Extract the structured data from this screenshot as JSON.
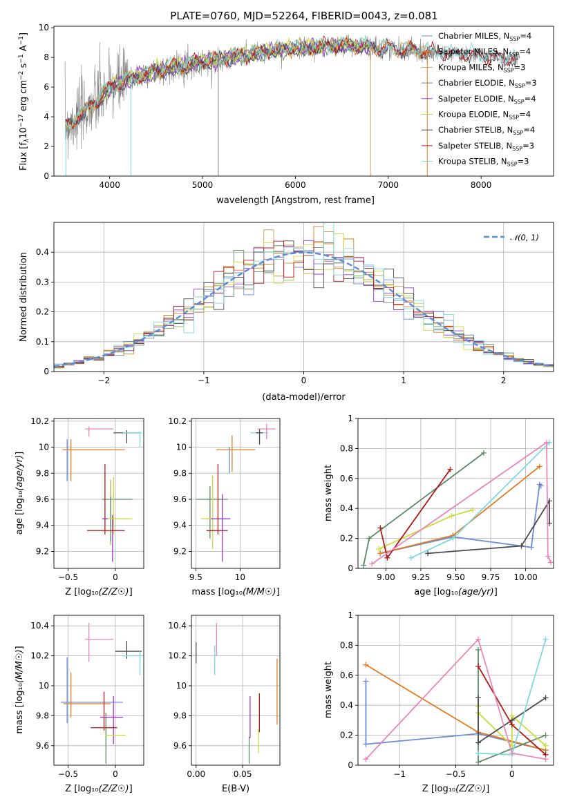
{
  "title": "PLATE=0760, MJD=52264, FIBERID=0043, z=0.081",
  "colors": {
    "Chabrier MILES": "#6a8bd8",
    "Salpeter MILES": "#e07b1f",
    "Kroupa MILES": "#bfa050",
    "Chabrier ELODIE": "#5a8a64",
    "Salpeter ELODIE": "#9b37c8",
    "Kroupa ELODIE": "#c8dc3c",
    "Chabrier STELIB": "#4a4a4a",
    "Salpeter STELIB": "#b01818",
    "Kroupa STELIB": "#7ed8e0"
  },
  "chart_data": [
    {
      "id": "spectrum",
      "type": "line",
      "title": "PLATE=0760, MJD=52264, FIBERID=0043, z=0.081",
      "xlabel": "wavelength [Angstrom, rest frame]",
      "ylabel": "Flux [f",
      "xlim": [
        3400,
        8780
      ],
      "ylim": [
        0,
        10.1
      ],
      "xticks": [
        4000,
        5000,
        6000,
        7000,
        8000
      ],
      "yticks": [
        0,
        2,
        4,
        6,
        8,
        10
      ],
      "grid": false,
      "legend_position": "top-right",
      "data_color": "#808080",
      "legend": [
        {
          "name": "Chabrier MILES",
          "n": "4"
        },
        {
          "name": "Salpeter MILES",
          "n": "4"
        },
        {
          "name": "Kroupa MILES",
          "n": "3"
        },
        {
          "name": "Chabrier ELODIE",
          "n": "3"
        },
        {
          "name": "Salpeter ELODIE",
          "n": "4"
        },
        {
          "name": "Kroupa ELODIE",
          "n": "4"
        },
        {
          "name": "Chabrier STELIB",
          "n": "4"
        },
        {
          "name": "Salpeter STELIB",
          "n": "3"
        },
        {
          "name": "Kroupa STELIB",
          "n": "3"
        }
      ],
      "continuum": {
        "x": [
          3520,
          3700,
          3900,
          4000,
          4200,
          4400,
          4600,
          4800,
          5000,
          5200,
          5400,
          5600,
          5800,
          6000,
          6200,
          6400,
          6600,
          6800,
          7000,
          7200,
          7400,
          7600,
          7800,
          8000,
          8200,
          8400
        ],
        "y": [
          3.3,
          4.2,
          5.3,
          5.9,
          6.5,
          6.9,
          7.2,
          7.5,
          7.7,
          7.9,
          8.1,
          8.3,
          8.5,
          8.6,
          8.7,
          8.8,
          8.8,
          8.7,
          8.6,
          8.5,
          8.4,
          8.3,
          8.2,
          8.1,
          8.0,
          7.9
        ]
      },
      "model_ranges": {
        "Chabrier MILES": [
          3525,
          7420
        ],
        "Salpeter MILES": [
          3525,
          7420
        ],
        "Kroupa MILES": [
          3525,
          7420
        ],
        "Chabrier ELODIE": [
          3900,
          6800
        ],
        "Salpeter ELODIE": [
          3900,
          6800
        ],
        "Kroupa ELODIE": [
          3900,
          6800
        ],
        "Chabrier STELIB": [
          3525,
          8400
        ],
        "Salpeter STELIB": [
          3525,
          8400
        ],
        "Kroupa STELIB": [
          3525,
          8400
        ]
      }
    },
    {
      "id": "residuals",
      "type": "histogram",
      "xlabel": "(data-model)/error",
      "ylabel": "Normed distribution",
      "xlim": [
        -2.5,
        2.5
      ],
      "ylim": [
        0,
        0.5
      ],
      "xticks": [
        -2,
        -1,
        0,
        1,
        2
      ],
      "yticks": [
        0.0,
        0.1,
        0.2,
        0.3,
        0.4
      ],
      "grid": true,
      "legend_position": "top-right",
      "reference_curve": {
        "name": "𝒩(0, 1)",
        "color": "#5b8ad6",
        "mean": 0,
        "sigma": 1
      },
      "bin_edges": [
        -2.5,
        2.5
      ],
      "bins": 50
    },
    {
      "id": "age-vs-Z",
      "type": "errorbar",
      "xlabel": "Z [log₁₀(Z/Z☉)]",
      "ylabel": "age  [log₁₀(age/yr)]",
      "xlim": [
        -0.65,
        0.3
      ],
      "ylim": [
        9.07,
        10.22
      ],
      "xticks": [
        -0.5,
        0.0
      ],
      "yticks": [
        9.2,
        9.4,
        9.6,
        9.8,
        10.0,
        10.2
      ],
      "grid": true,
      "points": [
        {
          "model": "Chabrier MILES",
          "x": -0.51,
          "xerr": 0.0,
          "y": 9.9,
          "yerr": 0.16
        },
        {
          "model": "Salpeter MILES",
          "x": -0.23,
          "xerr": 0.33,
          "y": 9.98,
          "yerr": 0.0
        },
        {
          "model": "Salpeter MILES",
          "x": -0.47,
          "xerr": 0.0,
          "y": 9.9,
          "yerr": 0.16
        },
        {
          "model": "Kroupa MILES",
          "x": -0.05,
          "xerr": 0.0,
          "y": 9.5,
          "yerr": 0.25
        },
        {
          "model": "Chabrier ELODIE",
          "x": 0.02,
          "xerr": 0.16,
          "y": 9.6,
          "yerr": 0.0
        },
        {
          "model": "Chabrier ELODIE",
          "x": -0.05,
          "xerr": 0.0,
          "y": 9.45,
          "yerr": 0.17
        },
        {
          "model": "Salpeter ELODIE",
          "x": -0.06,
          "xerr": 0.08,
          "y": 9.45,
          "yerr": 0.0
        },
        {
          "model": "Salpeter ELODIE",
          "x": -0.03,
          "xerr": 0.0,
          "y": 9.3,
          "yerr": 0.18
        },
        {
          "model": "Kroupa ELODIE",
          "x": 0.05,
          "xerr": 0.13,
          "y": 9.45,
          "yerr": 0.0
        },
        {
          "model": "Kroupa ELODIE",
          "x": -0.02,
          "xerr": 0.0,
          "y": 9.55,
          "yerr": 0.22
        },
        {
          "model": "Chabrier STELIB",
          "x": 0.12,
          "xerr": 0.14,
          "y": 10.11,
          "yerr": 0.0
        },
        {
          "model": "Chabrier STELIB",
          "x": 0.12,
          "xerr": 0.0,
          "y": 10.08,
          "yerr": 0.05
        },
        {
          "model": "Salpeter STELIB",
          "x": -0.11,
          "xerr": 0.0,
          "y": 9.6,
          "yerr": 0.27
        },
        {
          "model": "Salpeter STELIB",
          "x": -0.1,
          "xerr": 0.2,
          "y": 9.36,
          "yerr": 0.0
        },
        {
          "model": "Kroupa STELIB",
          "x": 0.18,
          "xerr": 0.1,
          "y": 10.11,
          "yerr": 0.0
        },
        {
          "model": "Kroupa STELIB",
          "x": 0.26,
          "xerr": 0.0,
          "y": 10.06,
          "yerr": 0.06
        },
        {
          "model": "Chabrier MILES",
          "x": -0.17,
          "xerr": 0.15,
          "y": 10.14,
          "yerr": 0.0,
          "color": "#e887b8"
        },
        {
          "model": "Chabrier MILES",
          "x": -0.28,
          "xerr": 0.0,
          "y": 10.12,
          "yerr": 0.04,
          "color": "#e887b8"
        }
      ]
    },
    {
      "id": "age-vs-mass",
      "type": "errorbar",
      "xlabel": "mass [log₁₀(M/M☉)]",
      "ylabel": "",
      "xlim": [
        9.45,
        10.45
      ],
      "ylim": [
        9.07,
        10.22
      ],
      "xticks": [
        9.5,
        10.0
      ],
      "yticks": [
        9.2,
        9.4,
        9.6,
        9.8,
        10.0,
        10.2
      ],
      "grid": true,
      "points": [
        {
          "model": "Salpeter MILES",
          "x": 9.95,
          "xerr": 0.22,
          "y": 9.98,
          "yerr": 0.0
        },
        {
          "model": "Salpeter MILES",
          "x": 9.91,
          "xerr": 0.0,
          "y": 9.95,
          "yerr": 0.14
        },
        {
          "model": "Chabrier MILES",
          "x": 9.88,
          "xerr": 0.0,
          "y": 9.9,
          "yerr": 0.1
        },
        {
          "model": "Chabrier ELODIE",
          "x": 9.68,
          "xerr": 0.18,
          "y": 9.6,
          "yerr": 0.0
        },
        {
          "model": "Chabrier ELODIE",
          "x": 9.66,
          "xerr": 0.0,
          "y": 9.5,
          "yerr": 0.2
        },
        {
          "model": "Kroupa ELODIE",
          "x": 9.68,
          "xerr": 0.12,
          "y": 9.45,
          "yerr": 0.0
        },
        {
          "model": "Kroupa ELODIE",
          "x": 9.69,
          "xerr": 0.0,
          "y": 9.5,
          "yerr": 0.28
        },
        {
          "model": "Salpeter ELODIE",
          "x": 9.78,
          "xerr": 0.11,
          "y": 9.45,
          "yerr": 0.0
        },
        {
          "model": "Salpeter ELODIE",
          "x": 9.8,
          "xerr": 0.0,
          "y": 9.38,
          "yerr": 0.26
        },
        {
          "model": "Salpeter STELIB",
          "x": 9.75,
          "xerr": 0.0,
          "y": 9.6,
          "yerr": 0.27
        },
        {
          "model": "Salpeter STELIB",
          "x": 9.74,
          "xerr": 0.12,
          "y": 9.36,
          "yerr": 0.0
        },
        {
          "model": "Kroupa STELIB",
          "x": 10.22,
          "xerr": 0.1,
          "y": 10.11,
          "yerr": 0.0
        },
        {
          "model": "Chabrier STELIB",
          "x": 10.22,
          "xerr": 0.04,
          "y": 10.11,
          "yerr": 0.0
        },
        {
          "model": "Chabrier STELIB",
          "x": 10.22,
          "xerr": 0.0,
          "y": 10.08,
          "yerr": 0.06
        },
        {
          "model": "Chabrier MILES",
          "x": 10.3,
          "xerr": 0.1,
          "y": 10.14,
          "yerr": 0.0,
          "color": "#e887b8"
        },
        {
          "model": "Chabrier MILES",
          "x": 10.3,
          "xerr": 0.0,
          "y": 10.12,
          "yerr": 0.06,
          "color": "#e887b8"
        }
      ]
    },
    {
      "id": "weight-vs-age",
      "type": "line",
      "xlabel": "age  [log₁₀(age/yr)]",
      "ylabel": "mass weight",
      "xlim": [
        8.8,
        10.2
      ],
      "ylim": [
        0,
        1.0
      ],
      "xticks": [
        9.0,
        9.25,
        9.5,
        9.75,
        10.0
      ],
      "xticklabels": [
        "9.00",
        "9.25",
        "9.50",
        "9.75",
        "10.00"
      ],
      "yticks": [
        0.0,
        0.2,
        0.4,
        0.6,
        0.8,
        1.0
      ],
      "grid": true,
      "series": [
        {
          "model": "Chabrier MILES",
          "x": [
            8.96,
            9.48,
            10.04,
            10.1,
            10.11
          ],
          "y": [
            0.1,
            0.21,
            0.14,
            0.56,
            0.55
          ]
        },
        {
          "model": "Salpeter MILES",
          "x": [
            8.96,
            9.48,
            10.1
          ],
          "y": [
            0.1,
            0.22,
            0.68
          ]
        },
        {
          "model": "Chabrier ELODIE",
          "x": [
            8.84,
            8.88,
            9.7
          ],
          "y": [
            0.02,
            0.2,
            0.77
          ]
        },
        {
          "model": "Kroupa ELODIE",
          "x": [
            8.95,
            9.47,
            9.62
          ],
          "y": [
            0.13,
            0.35,
            0.39
          ]
        },
        {
          "model": "Chabrier STELIB",
          "x": [
            9.3,
            9.97,
            10.17,
            10.17
          ],
          "y": [
            0.1,
            0.15,
            0.45,
            0.3
          ]
        },
        {
          "model": "Salpeter STELIB",
          "x": [
            8.96,
            9.01,
            9.46
          ],
          "y": [
            0.27,
            0.07,
            0.66
          ]
        },
        {
          "model": "Kroupa STELIB",
          "x": [
            9.18,
            9.48,
            10.17
          ],
          "y": [
            0.07,
            0.2,
            0.84
          ]
        },
        {
          "model": "Chabrier MILES",
          "x": [
            8.9,
            10.15,
            10.16,
            10.18
          ],
          "y": [
            0.03,
            0.84,
            0.08,
            0.04
          ],
          "color": "#e887b8"
        }
      ]
    },
    {
      "id": "mass-vs-Z",
      "type": "errorbar",
      "xlabel": "Z [log₁₀(Z/Z☉)]",
      "ylabel": "mass [log₁₀(M/M☉)]",
      "xlim": [
        -0.65,
        0.3
      ],
      "ylim": [
        9.47,
        10.47
      ],
      "xticks": [
        -0.5,
        0.0
      ],
      "yticks": [
        9.6,
        9.8,
        10.0,
        10.2,
        10.4
      ],
      "grid": true,
      "points": [
        {
          "model": "Chabrier MILES",
          "x": -0.25,
          "xerr": 0.33,
          "y": 9.89,
          "yerr": 0.0
        },
        {
          "model": "Chabrier MILES",
          "x": -0.51,
          "xerr": 0.0,
          "y": 9.97,
          "yerr": 0.22
        },
        {
          "model": "Salpeter MILES",
          "x": -0.3,
          "xerr": 0.25,
          "y": 9.88,
          "yerr": 0.0
        },
        {
          "model": "Salpeter MILES",
          "x": -0.47,
          "xerr": 0.0,
          "y": 9.94,
          "yerr": 0.15
        },
        {
          "model": "Chabrier ELODIE",
          "x": -0.1,
          "xerr": 0.0,
          "y": 9.65,
          "yerr": 0.17
        },
        {
          "model": "Salpeter ELODIE",
          "x": -0.04,
          "xerr": 0.12,
          "y": 9.79,
          "yerr": 0.0
        },
        {
          "model": "Salpeter ELODIE",
          "x": -0.02,
          "xerr": 0.0,
          "y": 9.77,
          "yerr": 0.16
        },
        {
          "model": "Kroupa ELODIE",
          "x": 0.0,
          "xerr": 0.11,
          "y": 9.67,
          "yerr": 0.0
        },
        {
          "model": "Salpeter STELIB",
          "x": -0.12,
          "xerr": 0.0,
          "y": 9.83,
          "yerr": 0.13
        },
        {
          "model": "Salpeter STELIB",
          "x": -0.12,
          "xerr": 0.14,
          "y": 9.72,
          "yerr": 0.0
        },
        {
          "model": "Chabrier STELIB",
          "x": 0.14,
          "xerr": 0.14,
          "y": 10.23,
          "yerr": 0.0
        },
        {
          "model": "Chabrier STELIB",
          "x": 0.12,
          "xerr": 0.0,
          "y": 10.24,
          "yerr": 0.06
        },
        {
          "model": "Kroupa STELIB",
          "x": 0.18,
          "xerr": 0.1,
          "y": 10.2,
          "yerr": 0.0
        },
        {
          "model": "Kroupa STELIB",
          "x": 0.26,
          "xerr": 0.0,
          "y": 10.15,
          "yerr": 0.08
        },
        {
          "model": "Chabrier MILES",
          "x": -0.17,
          "xerr": 0.15,
          "y": 10.31,
          "yerr": 0.0,
          "color": "#e887b8"
        },
        {
          "model": "Chabrier MILES",
          "x": -0.28,
          "xerr": 0.0,
          "y": 10.29,
          "yerr": 0.13,
          "color": "#e887b8"
        }
      ]
    },
    {
      "id": "mass-vs-EBV",
      "type": "errorbar",
      "xlabel": "E(B-V)",
      "ylabel": "",
      "xlim": [
        -0.005,
        0.09
      ],
      "ylim": [
        9.47,
        10.47
      ],
      "xticks": [
        0.0,
        0.05
      ],
      "xticklabels": [
        "0.00",
        "0.05"
      ],
      "yticks": [
        9.6,
        9.8,
        10.0,
        10.2,
        10.4
      ],
      "grid": true,
      "points": [
        {
          "model": "Chabrier STELIB",
          "x": 0.0,
          "xerr": 0.0,
          "y": 10.22,
          "yerr": 0.07
        },
        {
          "model": "Kroupa STELIB",
          "x": 0.02,
          "xerr": 0.0,
          "y": 10.17,
          "yerr": 0.1
        },
        {
          "model": "Chabrier MILES",
          "x": 0.022,
          "xerr": 0.0,
          "y": 10.31,
          "yerr": 0.11,
          "color": "#e887b8"
        },
        {
          "model": "Salpeter ELODIE",
          "x": 0.058,
          "xerr": 0.0,
          "y": 9.79,
          "yerr": 0.14
        },
        {
          "model": "Chabrier ELODIE",
          "x": 0.057,
          "xerr": 0.0,
          "y": 9.57,
          "yerr": 0.09
        },
        {
          "model": "Salpeter STELIB",
          "x": 0.068,
          "xerr": 0.0,
          "y": 9.82,
          "yerr": 0.13
        },
        {
          "model": "Kroupa ELODIE",
          "x": 0.067,
          "xerr": 0.0,
          "y": 9.63,
          "yerr": 0.08
        },
        {
          "model": "Salpeter MILES",
          "x": 0.087,
          "xerr": 0.0,
          "y": 9.96,
          "yerr": 0.22
        }
      ]
    },
    {
      "id": "weight-vs-Z",
      "type": "line",
      "xlabel": "Z [log₁₀(Z/Z☉)]",
      "ylabel": "mass weight",
      "xlim": [
        -1.37,
        0.37
      ],
      "ylim": [
        0,
        1.0
      ],
      "xticks": [
        -1.0,
        -0.5,
        0.0
      ],
      "yticks": [
        0.0,
        0.2,
        0.4,
        0.6,
        0.8,
        1.0
      ],
      "grid": true,
      "series": [
        {
          "model": "Chabrier MILES",
          "x": [
            -1.3,
            -1.3,
            -0.3,
            0.3
          ],
          "y": [
            0.56,
            0.14,
            0.21,
            0.1
          ]
        },
        {
          "model": "Salpeter MILES",
          "x": [
            -1.3,
            -0.3,
            0.3
          ],
          "y": [
            0.67,
            0.22,
            0.1
          ]
        },
        {
          "model": "Chabrier ELODIE",
          "x": [
            -0.3,
            -0.3,
            0.3
          ],
          "y": [
            0.77,
            0.02,
            0.2
          ]
        },
        {
          "model": "Kroupa ELODIE",
          "x": [
            -0.3,
            -0.3,
            0.0,
            0.0,
            0.3
          ],
          "y": [
            0.39,
            0.35,
            0.13,
            0.33,
            0.13
          ]
        },
        {
          "model": "Chabrier STELIB",
          "x": [
            -0.3,
            -0.3,
            0.0,
            0.3
          ],
          "y": [
            0.45,
            0.15,
            0.3,
            0.45
          ]
        },
        {
          "model": "Salpeter STELIB",
          "x": [
            -0.3,
            0.0,
            0.3
          ],
          "y": [
            0.66,
            0.27,
            0.07
          ]
        },
        {
          "model": "Kroupa STELIB",
          "x": [
            -0.3,
            0.0,
            0.3
          ],
          "y": [
            0.08,
            0.07,
            0.84
          ]
        },
        {
          "model": "Chabrier MILES",
          "x": [
            -1.3,
            -0.3,
            0.0,
            0.3
          ],
          "y": [
            0.04,
            0.84,
            0.08,
            0.04
          ],
          "color": "#e887b8"
        }
      ]
    }
  ]
}
